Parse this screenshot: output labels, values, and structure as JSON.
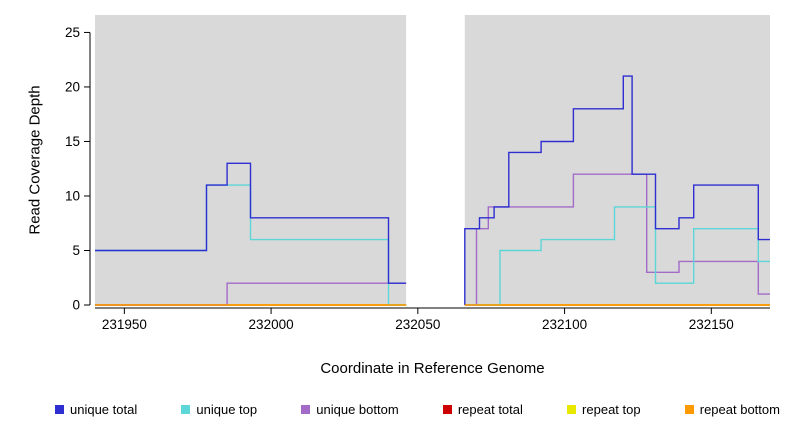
{
  "chart_data": {
    "type": "line",
    "style": "step",
    "title": "",
    "xlabel": "Coordinate in Reference Genome",
    "ylabel": "Read Coverage Depth",
    "xlim": [
      231940,
      232170
    ],
    "ylim": [
      0,
      26.6
    ],
    "xticks": [
      231950,
      232000,
      232050,
      232100,
      232150
    ],
    "yticks": [
      0,
      5,
      10,
      15,
      20,
      25
    ],
    "plot_bg": "#d9d9d9",
    "gap_region": [
      232046,
      232066
    ],
    "legend_position": "bottom",
    "grid": false,
    "draw_order": [
      3,
      4,
      2,
      1,
      0,
      5
    ],
    "series": [
      {
        "name": "unique total",
        "color": "#2e2ed1",
        "segments": [
          [
            [
              231940,
              5
            ],
            [
              231978,
              11
            ],
            [
              231985,
              13
            ],
            [
              231993,
              8
            ],
            [
              232040,
              2
            ],
            [
              232046,
              2
            ]
          ],
          [
            [
              232066,
              0
            ],
            [
              232066,
              7
            ],
            [
              232071,
              8
            ],
            [
              232076,
              9
            ],
            [
              232081,
              14
            ],
            [
              232092,
              15
            ],
            [
              232103,
              18
            ],
            [
              232120,
              21
            ],
            [
              232123,
              12
            ],
            [
              232131,
              7
            ],
            [
              232139,
              8
            ],
            [
              232144,
              11
            ],
            [
              232166,
              6
            ],
            [
              232170,
              6
            ]
          ]
        ]
      },
      {
        "name": "unique top",
        "color": "#5cd6d6",
        "segments": [
          [
            [
              231940,
              5
            ],
            [
              231978,
              11
            ],
            [
              231993,
              6
            ],
            [
              232040,
              0
            ],
            [
              232046,
              0
            ]
          ],
          [
            [
              232066,
              0
            ],
            [
              232078,
              5
            ],
            [
              232092,
              6
            ],
            [
              232117,
              9
            ],
            [
              232131,
              2
            ],
            [
              232144,
              7
            ],
            [
              232166,
              4
            ],
            [
              232170,
              4
            ]
          ]
        ]
      },
      {
        "name": "unique bottom",
        "color": "#a36bc8",
        "segments": [
          [
            [
              231940,
              0
            ],
            [
              231985,
              2
            ],
            [
              232046,
              2
            ]
          ],
          [
            [
              232066,
              0
            ],
            [
              232070,
              7
            ],
            [
              232074,
              9
            ],
            [
              232103,
              12
            ],
            [
              232128,
              3
            ],
            [
              232139,
              4
            ],
            [
              232166,
              1
            ],
            [
              232170,
              1
            ]
          ]
        ]
      },
      {
        "name": "repeat total",
        "color": "#cc0000",
        "segments": [
          [
            [
              231940,
              0
            ],
            [
              232046,
              0
            ]
          ],
          [
            [
              232066,
              0
            ],
            [
              232170,
              0
            ]
          ]
        ]
      },
      {
        "name": "repeat top",
        "color": "#e8e800",
        "segments": [
          [
            [
              231940,
              0
            ],
            [
              232046,
              0
            ]
          ],
          [
            [
              232066,
              0
            ],
            [
              232170,
              0
            ]
          ]
        ]
      },
      {
        "name": "repeat bottom",
        "color": "#ff9900",
        "segments": [
          [
            [
              231940,
              0
            ],
            [
              232046,
              0
            ]
          ],
          [
            [
              232066,
              0
            ],
            [
              232170,
              0
            ]
          ]
        ]
      }
    ]
  }
}
